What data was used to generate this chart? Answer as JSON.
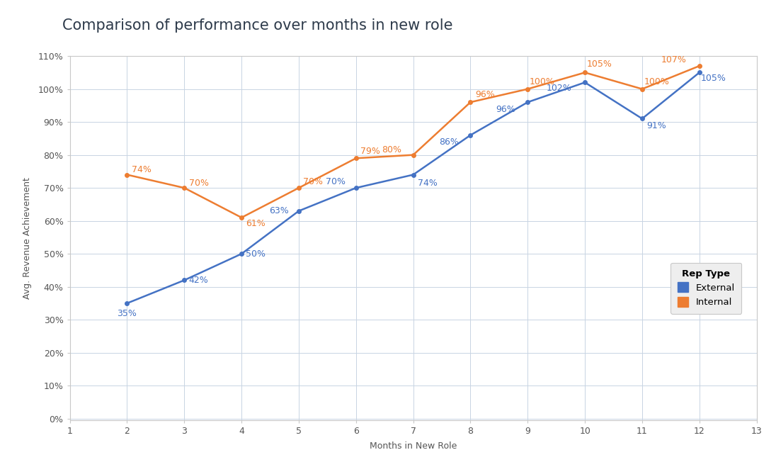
{
  "title": "Comparison of performance over months in new role",
  "xlabel": "Months in New Role",
  "ylabel": "Avg. Revenue Achievement",
  "xlim": [
    1,
    13
  ],
  "ylim": [
    -0.005,
    0.118
  ],
  "yticks": [
    0.0,
    0.1,
    0.2,
    0.3,
    0.4,
    0.5,
    0.6,
    0.7,
    0.8,
    0.9,
    1.0,
    1.1
  ],
  "xticks": [
    1,
    2,
    3,
    4,
    5,
    6,
    7,
    8,
    9,
    10,
    11,
    12,
    13
  ],
  "external": {
    "x": [
      2,
      3,
      4,
      5,
      6,
      7,
      8,
      9,
      10,
      11,
      12
    ],
    "y": [
      0.35,
      0.42,
      0.5,
      0.63,
      0.7,
      0.74,
      0.86,
      0.96,
      1.02,
      0.91,
      1.05
    ],
    "labels": [
      "35%",
      "42%",
      "50%",
      "63%",
      "70%",
      "74%",
      "86%",
      "96%",
      "102%",
      "91%",
      "105%"
    ],
    "label_dx": [
      0.0,
      0.25,
      0.25,
      -0.35,
      -0.35,
      0.25,
      -0.38,
      -0.38,
      -0.45,
      0.25,
      0.25
    ],
    "label_dy": [
      -0.032,
      0.0,
      0.0,
      0.0,
      0.018,
      -0.025,
      -0.022,
      -0.022,
      -0.018,
      -0.022,
      -0.018
    ],
    "color": "#4472C4",
    "label": "External"
  },
  "internal": {
    "x": [
      2,
      3,
      4,
      5,
      6,
      7,
      8,
      9,
      10,
      11,
      12
    ],
    "y": [
      0.74,
      0.7,
      0.61,
      0.7,
      0.79,
      0.8,
      0.96,
      1.0,
      1.05,
      1.0,
      1.07
    ],
    "labels": [
      "74%",
      "70%",
      "61%",
      "70%",
      "79%",
      "80%",
      "96%",
      "100%",
      "105%",
      "100%",
      "107%"
    ],
    "label_dx": [
      0.25,
      0.25,
      0.25,
      0.25,
      0.25,
      -0.38,
      0.25,
      0.25,
      0.25,
      0.25,
      -0.45
    ],
    "label_dy": [
      0.015,
      0.015,
      -0.018,
      0.018,
      0.022,
      0.015,
      0.022,
      0.022,
      0.025,
      0.022,
      0.018
    ],
    "color": "#ED7D31",
    "label": "Internal"
  },
  "background_color": "#ffffff",
  "plot_bg_color": "#ffffff",
  "grid_color": "#c8d4e3",
  "title_color": "#2d3a4a",
  "title_fontsize": 15,
  "axis_label_fontsize": 9,
  "tick_fontsize": 9,
  "annotation_fontsize": 9,
  "legend_title": "Rep Type",
  "legend_bg": "#eeeeee",
  "spine_color": "#c8c8c8"
}
